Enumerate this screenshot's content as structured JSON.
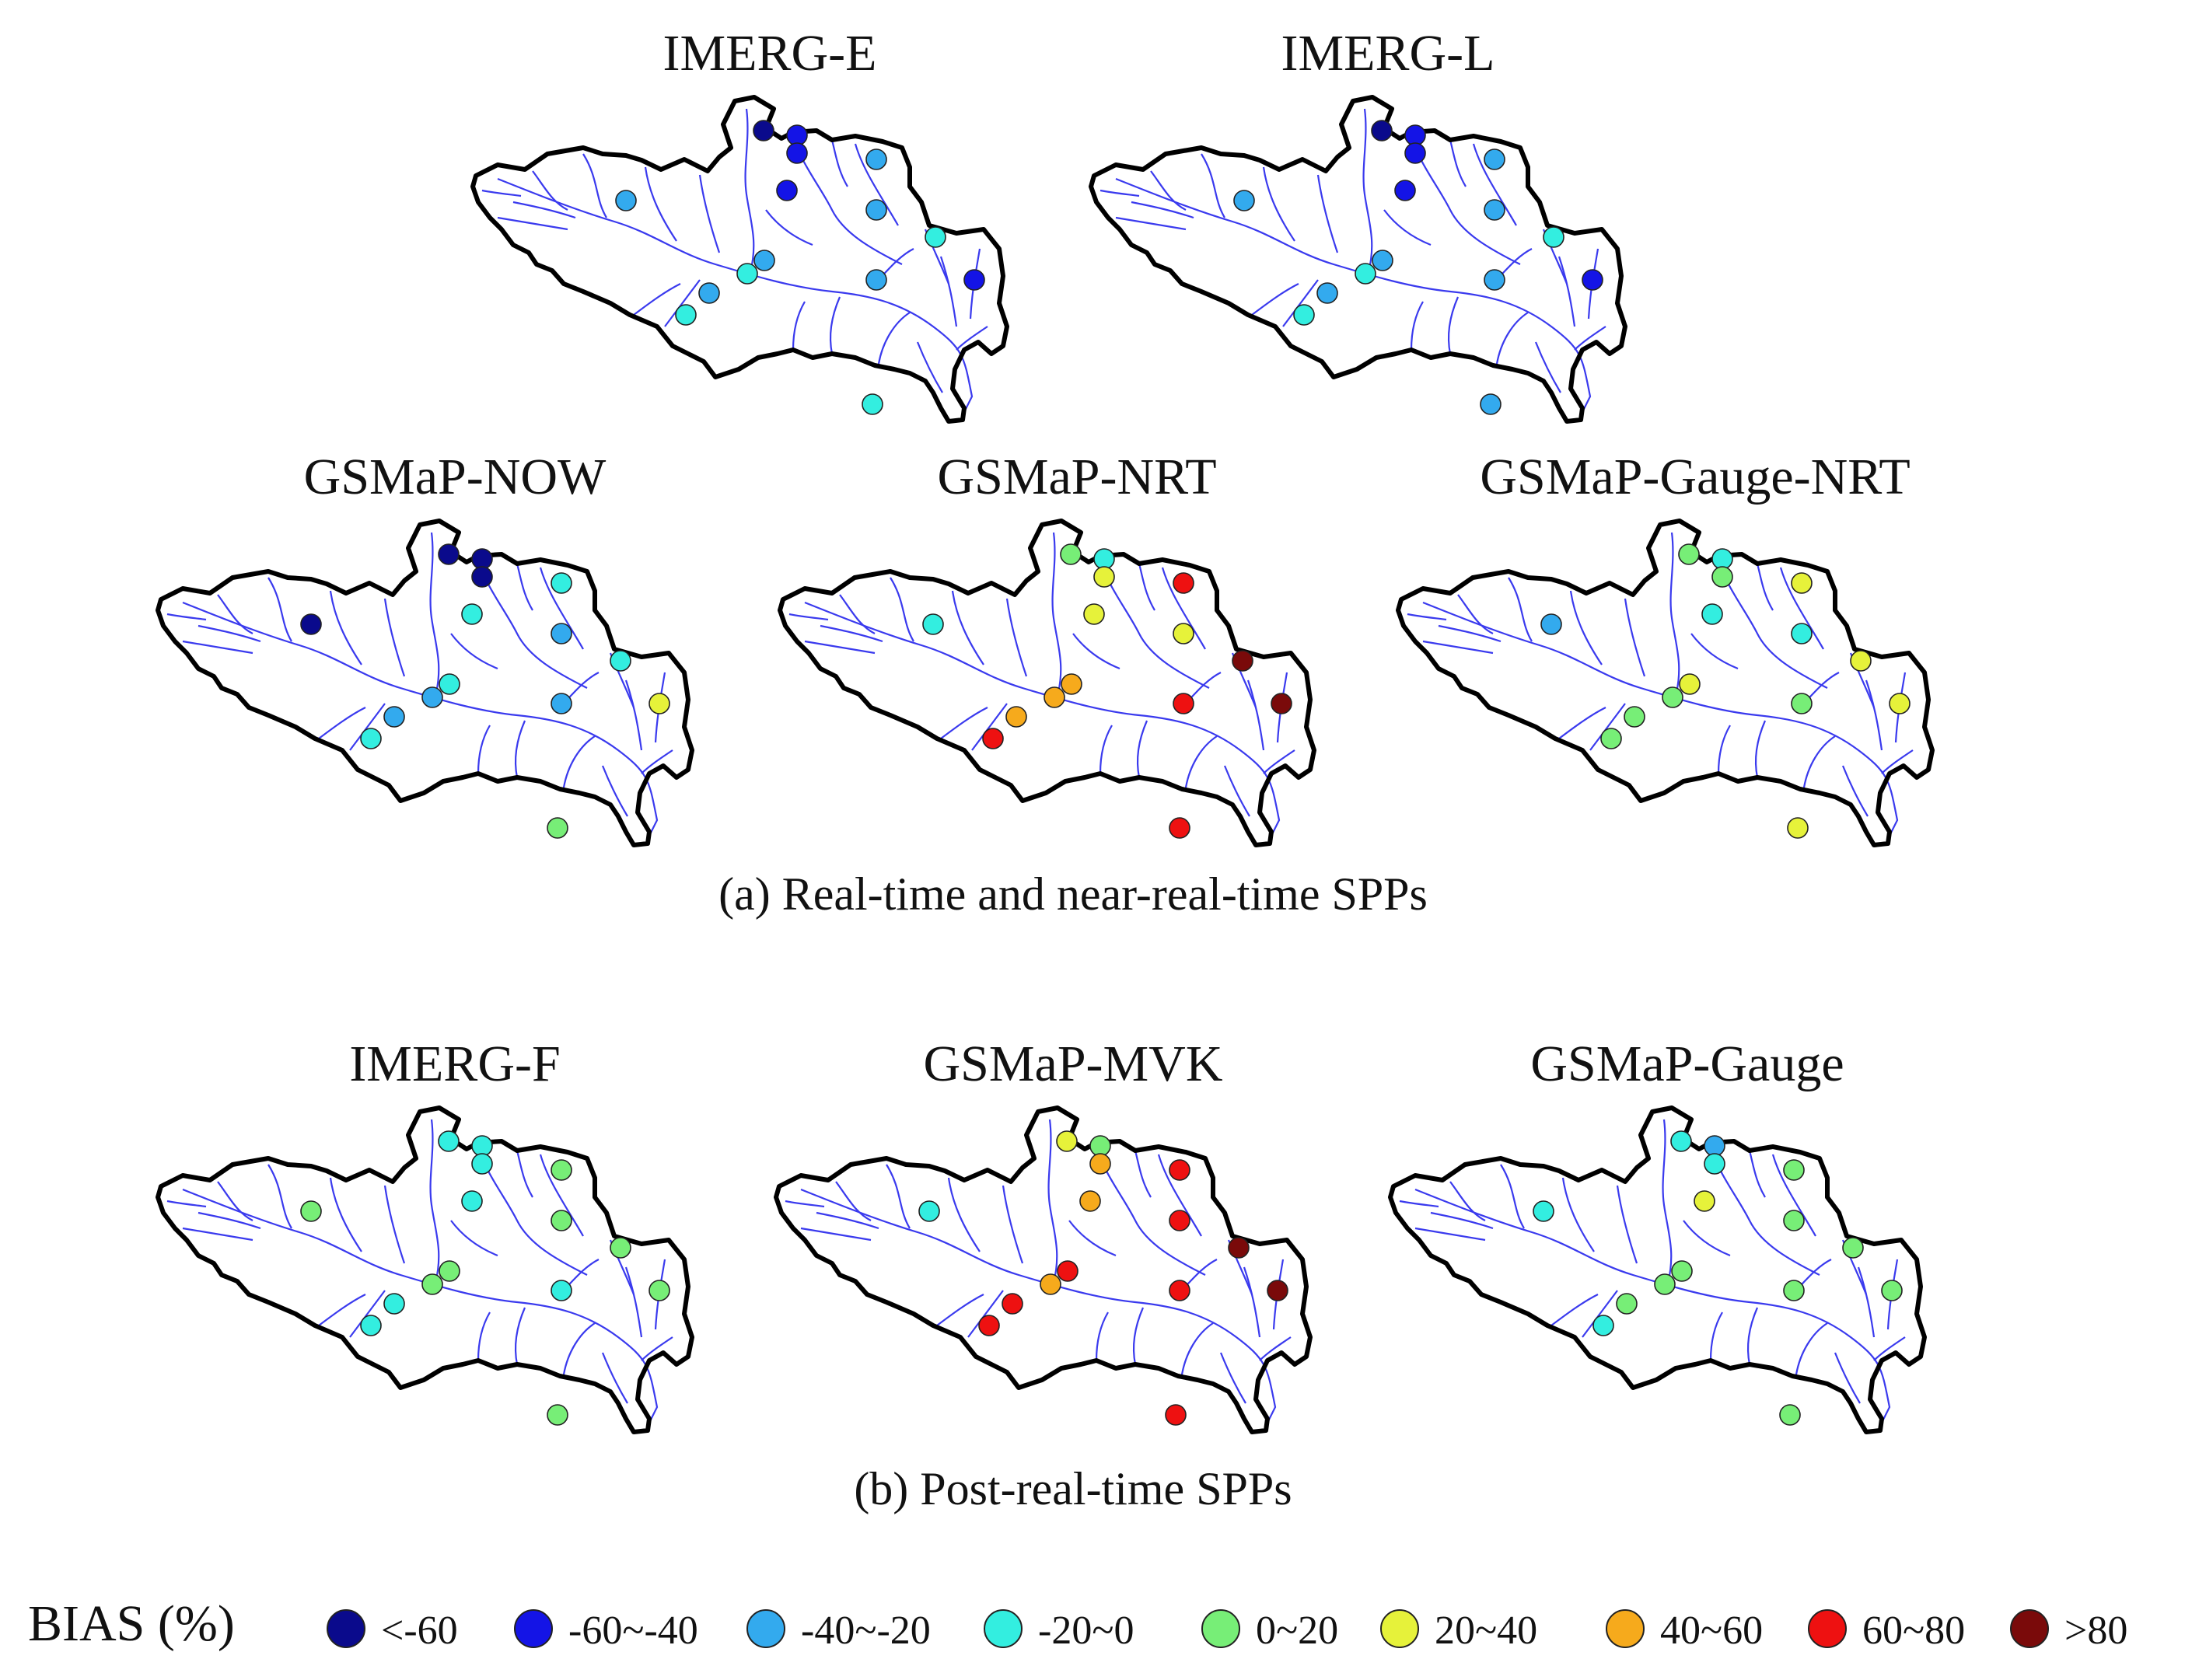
{
  "panels": [
    {
      "id": "imerg-e",
      "title": "IMERG-E",
      "stations": [
        "vlow",
        "low",
        "low",
        "mid",
        "mid",
        "low",
        "mid",
        "neg",
        "mid",
        "neg",
        "mid",
        "low",
        "mid",
        "neg",
        "neg"
      ]
    },
    {
      "id": "imerg-l",
      "title": "IMERG-L",
      "stations": [
        "vlow",
        "low",
        "low",
        "mid",
        "mid",
        "low",
        "mid",
        "neg",
        "mid",
        "neg",
        "mid",
        "low",
        "mid",
        "neg",
        "mid"
      ]
    },
    {
      "id": "gsmap-now",
      "title": "GSMaP-NOW",
      "stations": [
        "vlow",
        "vlow",
        "vlow",
        "neg",
        "vlow",
        "neg",
        "mid",
        "neg",
        "neg",
        "mid",
        "mid",
        "pos2",
        "mid",
        "neg",
        "pos1"
      ]
    },
    {
      "id": "gsmap-nrt",
      "title": "GSMaP-NRT",
      "stations": [
        "pos1",
        "neg",
        "pos2",
        "pos4",
        "neg",
        "pos2",
        "pos2",
        "vhigh",
        "pos3",
        "pos3",
        "pos4",
        "vhigh",
        "pos3",
        "pos4",
        "pos4"
      ]
    },
    {
      "id": "gsmap-gauge-nrt",
      "title": "GSMaP-Gauge-NRT",
      "stations": [
        "pos1",
        "neg",
        "pos1",
        "pos2",
        "mid",
        "neg",
        "neg",
        "pos2",
        "pos2",
        "pos1",
        "pos1",
        "pos2",
        "pos1",
        "pos1",
        "pos2"
      ]
    },
    {
      "id": "imerg-f",
      "title": "IMERG-F",
      "stations": [
        "neg",
        "neg",
        "neg",
        "pos1",
        "pos1",
        "neg",
        "pos1",
        "pos1",
        "pos1",
        "pos1",
        "neg",
        "pos1",
        "neg",
        "neg",
        "pos1"
      ]
    },
    {
      "id": "gsmap-mvk",
      "title": "GSMaP-MVK",
      "stations": [
        "pos2",
        "pos1",
        "pos3",
        "pos4",
        "neg",
        "pos3",
        "pos4",
        "vhigh",
        "pos4",
        "pos3",
        "pos4",
        "vhigh",
        "pos4",
        "pos4",
        "pos4"
      ]
    },
    {
      "id": "gsmap-gauge",
      "title": "GSMaP-Gauge",
      "stations": [
        "neg",
        "mid",
        "neg",
        "pos1",
        "neg",
        "pos2",
        "pos1",
        "pos1",
        "pos1",
        "pos1",
        "pos1",
        "pos1",
        "pos1",
        "neg",
        "pos1"
      ]
    }
  ],
  "captions": {
    "a": "(a) Real-time and near-real-time SPPs",
    "b": "(b) Post-real-time SPPs"
  },
  "legend": {
    "title": "BIAS (%)",
    "classes": [
      {
        "key": "vlow",
        "label": "<-60",
        "color": "#0a0a8c"
      },
      {
        "key": "low",
        "label": "-60~-40",
        "color": "#1414e6"
      },
      {
        "key": "mid",
        "label": "-40~-20",
        "color": "#33aaee"
      },
      {
        "key": "neg",
        "label": "-20~0",
        "color": "#33eee0"
      },
      {
        "key": "pos1",
        "label": "0~20",
        "color": "#77ee77"
      },
      {
        "key": "pos2",
        "label": "20~40",
        "color": "#e6f23a"
      },
      {
        "key": "pos3",
        "label": "40~60",
        "color": "#f6aa1c"
      },
      {
        "key": "pos4",
        "label": "60~80",
        "color": "#ee1111"
      },
      {
        "key": "vhigh",
        "label": ">80",
        "color": "#7a0a0a"
      }
    ]
  },
  "colors": {
    "basin_outline": "#000000",
    "rivers": "#3a3aee"
  }
}
